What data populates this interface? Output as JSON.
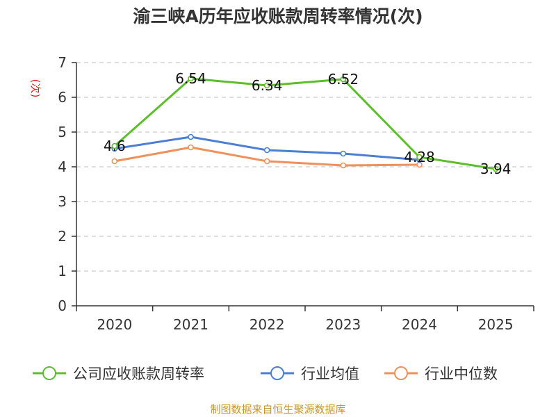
{
  "chart_data": {
    "type": "line",
    "title": "渝三峡A历年应收账款周转率情况(次)",
    "ylabel": "(次)",
    "xlabel": "",
    "categories": [
      "2020",
      "2021",
      "2022",
      "2023",
      "2024",
      "2025"
    ],
    "ylim": [
      0,
      7
    ],
    "yticks": [
      0,
      1,
      2,
      3,
      4,
      5,
      6,
      7
    ],
    "grid": true,
    "legend_position": "bottom",
    "series": [
      {
        "name": "公司应收账款周转率",
        "values": [
          4.6,
          6.54,
          6.34,
          6.52,
          4.28,
          3.94
        ],
        "labels": [
          "4.6",
          "6.54",
          "6.34",
          "6.52",
          "4.28",
          "3.94"
        ],
        "color": "#5cbf2a"
      },
      {
        "name": "行业均值",
        "values": [
          4.52,
          4.86,
          4.48,
          4.38,
          4.2,
          null
        ],
        "color": "#4a7fd4"
      },
      {
        "name": "行业中位数",
        "values": [
          4.16,
          4.56,
          4.16,
          4.04,
          4.06,
          null
        ],
        "color": "#f0905a"
      }
    ]
  },
  "source": "制图数据来自恒生聚源数据库"
}
